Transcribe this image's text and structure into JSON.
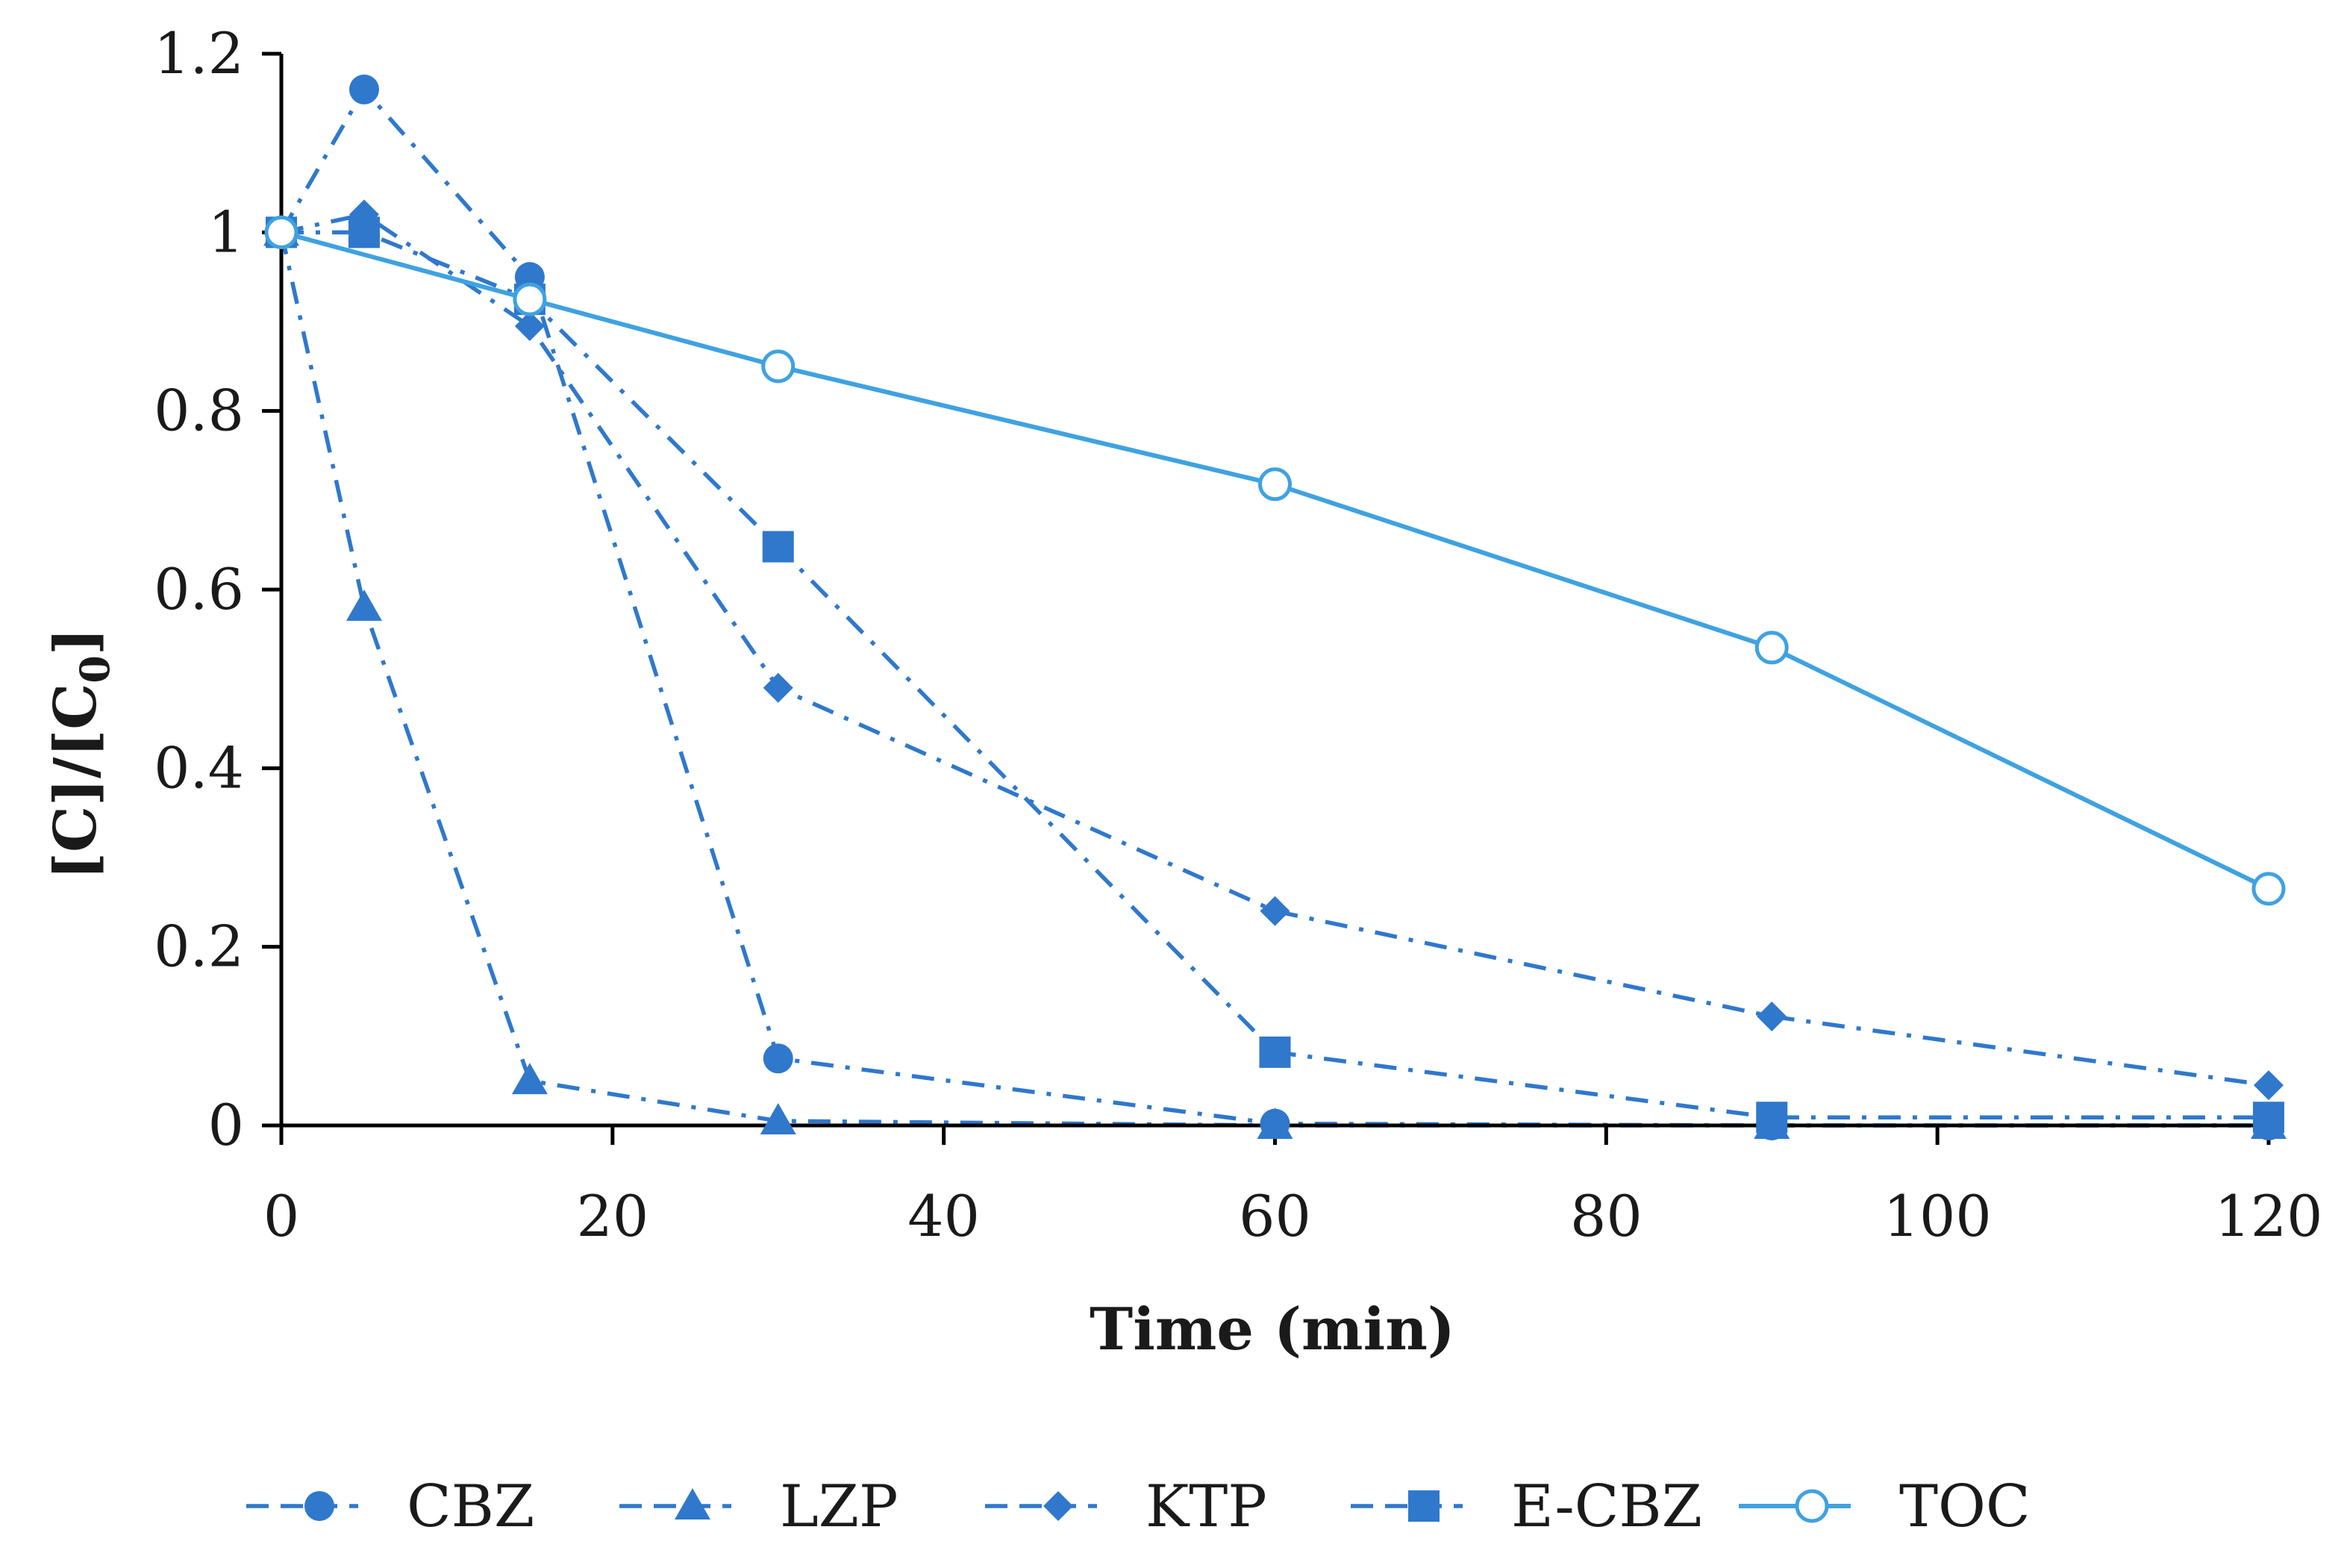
{
  "chart_data": {
    "type": "line",
    "title": "",
    "xlabel": "Time (min)",
    "ylabel": "[C]/[C0]",
    "ylabel_parts": {
      "main": "[C]/[C",
      "subscript": "0",
      "close": "]"
    },
    "xlim": [
      0,
      120
    ],
    "ylim": [
      0,
      1.2
    ],
    "xticks": [
      0,
      20,
      40,
      60,
      80,
      100,
      120
    ],
    "xtick_labels": [
      "0",
      "20",
      "40",
      "60",
      "80",
      "100",
      "120"
    ],
    "yticks": [
      0,
      0.2,
      0.4,
      0.6,
      0.8,
      1,
      1.2
    ],
    "ytick_labels": [
      "0",
      "0.2",
      "0.4",
      "0.6",
      "0.8",
      "1",
      "1.2"
    ],
    "grid": false,
    "legend_position": "bottom",
    "series": [
      {
        "name": "CBZ",
        "marker": "circle",
        "line_style": "dash-dot",
        "color": "#2f78cc",
        "x": [
          0,
          5,
          15,
          30,
          60,
          90,
          120
        ],
        "y": [
          1.0,
          1.16,
          0.95,
          0.075,
          0.002,
          0.0,
          0.0
        ]
      },
      {
        "name": "LZP",
        "marker": "triangle",
        "line_style": "dash-dot",
        "color": "#2f78cc",
        "x": [
          0,
          5,
          15,
          30,
          60,
          90,
          120
        ],
        "y": [
          1.0,
          0.58,
          0.05,
          0.005,
          0.0,
          0.0,
          0.0
        ]
      },
      {
        "name": "KTP",
        "marker": "diamond",
        "line_style": "dash-dot",
        "color": "#2f78cc",
        "x": [
          0,
          5,
          15,
          30,
          60,
          90,
          120
        ],
        "y": [
          1.0,
          1.02,
          0.895,
          0.49,
          0.24,
          0.122,
          0.045
        ]
      },
      {
        "name": "E-CBZ",
        "marker": "square",
        "line_style": "dash-dot",
        "color": "#2f78cc",
        "x": [
          0,
          5,
          15,
          30,
          60,
          90,
          120
        ],
        "y": [
          1.0,
          1.0,
          0.925,
          0.648,
          0.082,
          0.009,
          0.009
        ]
      },
      {
        "name": "TOC",
        "marker": "open-circle",
        "line_style": "solid",
        "color": "#3fa2e0",
        "x": [
          0,
          15,
          30,
          60,
          90,
          120
        ],
        "y": [
          1.0,
          0.925,
          0.85,
          0.718,
          0.535,
          0.265
        ]
      }
    ]
  }
}
